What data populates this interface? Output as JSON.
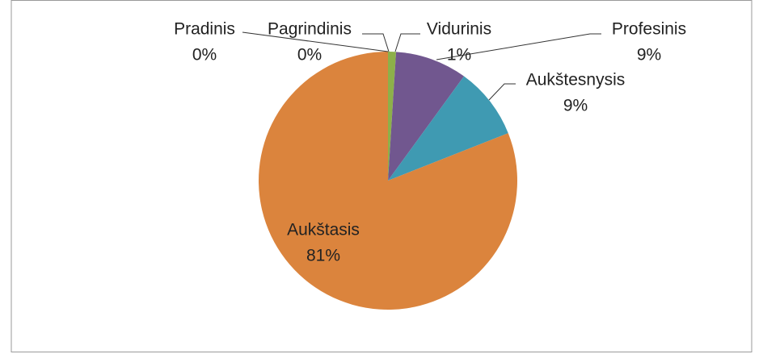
{
  "chart_data": {
    "type": "pie",
    "categories": [
      "Pradinis",
      "Pagrindinis",
      "Vidurinis",
      "Profesinis",
      "Aukštesnysis",
      "Aukštasis"
    ],
    "values": [
      0,
      0,
      1,
      9,
      9,
      81
    ],
    "value_labels": [
      "0%",
      "0%",
      "1%",
      "9%",
      "9%",
      "81%"
    ],
    "colors": [
      "#4f81bd",
      "#c0504d",
      "#8db04a",
      "#71578f",
      "#3f9ab2",
      "#db843d"
    ]
  }
}
